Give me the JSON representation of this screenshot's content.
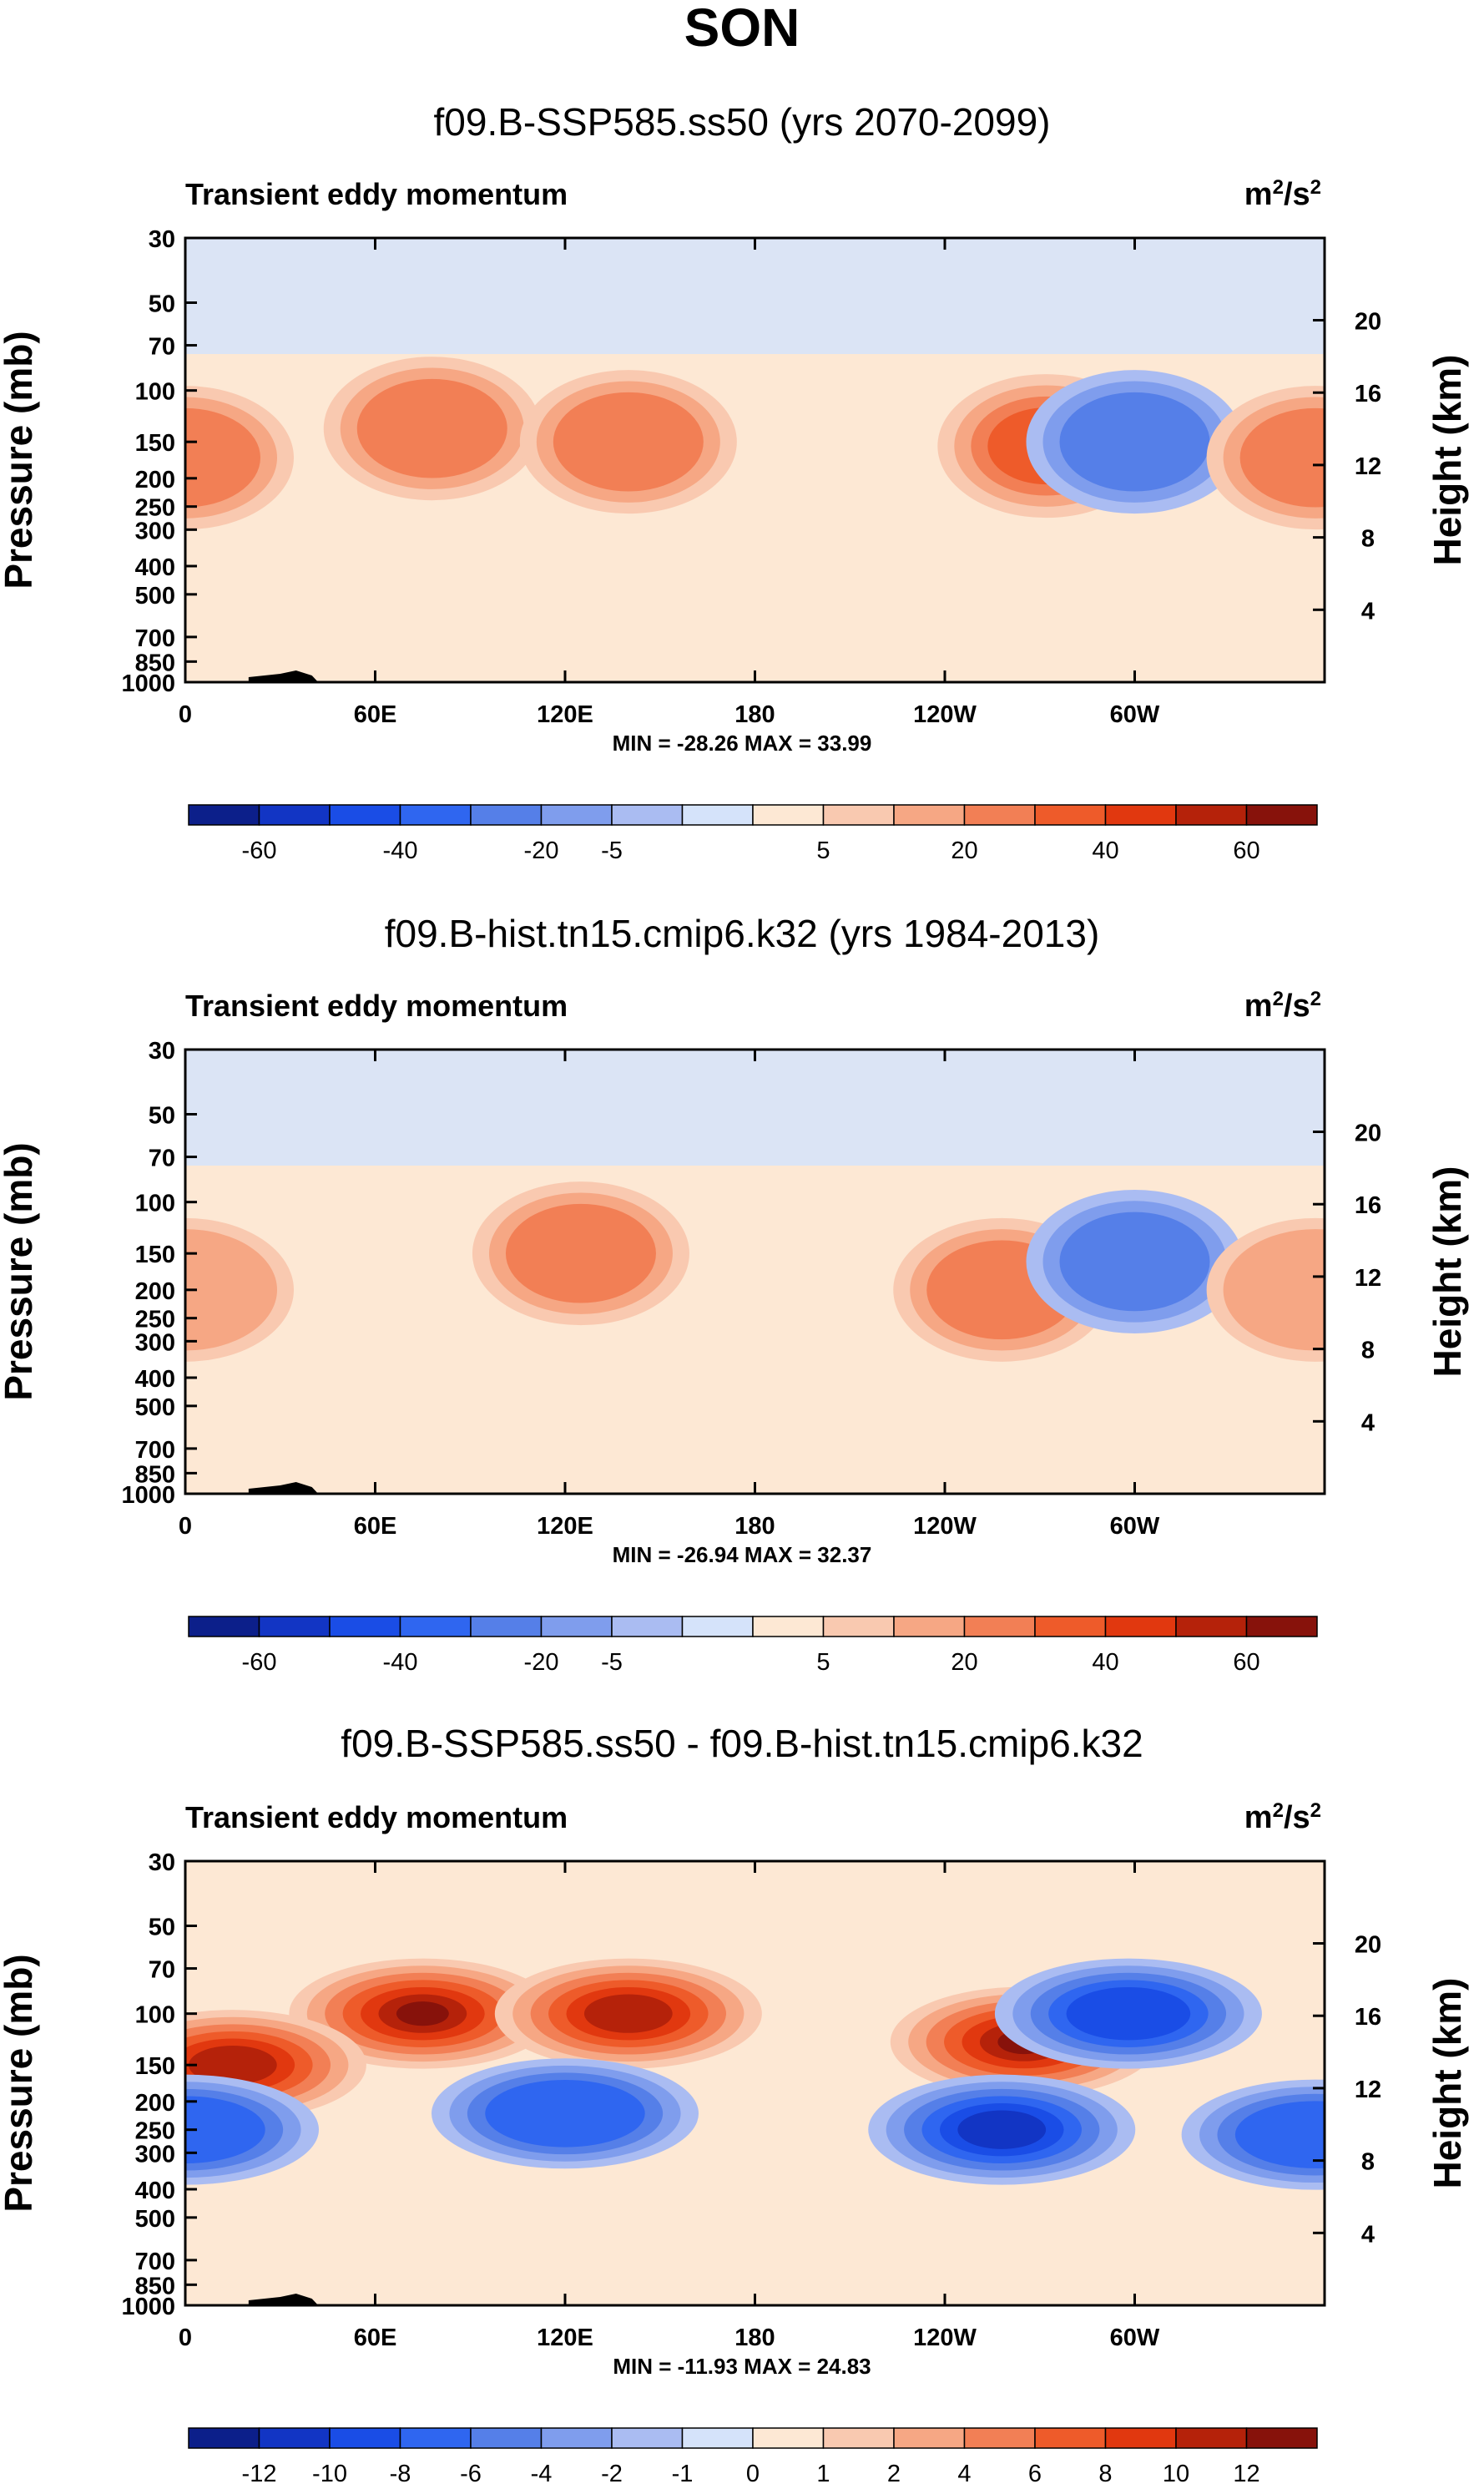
{
  "figure_title": "SON",
  "chart_data": [
    {
      "type": "heatmap",
      "title": "f09.B-SSP585.ss50 (yrs 2070-2099)",
      "variable": "Transient eddy momentum",
      "units_base": "m",
      "units_exp1": "2",
      "units_sep": "/s",
      "units_exp2": "2",
      "ylabel": "Pressure (mb)",
      "ylabel_right": "Height (km)",
      "y_ticks": [
        "30",
        "50",
        "70",
        "100",
        "150",
        "200",
        "250",
        "300",
        "400",
        "500",
        "700",
        "850",
        "1000"
      ],
      "y_right_ticks": [
        "20",
        "16",
        "12",
        "8",
        "4"
      ],
      "x_ticks": [
        "0",
        "60E",
        "120E",
        "180",
        "120W",
        "60W"
      ],
      "stats": "MIN = -28.26  MAX = 33.99",
      "colorbar_labels": [
        "-60",
        "-40",
        "-20",
        "-5",
        "5",
        "20",
        "40",
        "60"
      ],
      "features": [
        {
          "lon": 0,
          "p": 170,
          "value": 20
        },
        {
          "lon": 78,
          "p": 135,
          "value": 25
        },
        {
          "lon": 140,
          "p": 150,
          "value": 24
        },
        {
          "lon": 272,
          "p": 155,
          "value": 30
        },
        {
          "lon": 300,
          "p": 150,
          "value": -26
        },
        {
          "lon": 357,
          "p": 170,
          "value": 20
        }
      ]
    },
    {
      "type": "heatmap",
      "title": "f09.B-hist.tn15.cmip6.k32 (yrs 1984-2013)",
      "variable": "Transient eddy momentum",
      "units_base": "m",
      "units_exp1": "2",
      "units_sep": "/s",
      "units_exp2": "2",
      "ylabel": "Pressure (mb)",
      "ylabel_right": "Height (km)",
      "y_ticks": [
        "30",
        "50",
        "70",
        "100",
        "150",
        "200",
        "250",
        "300",
        "400",
        "500",
        "700",
        "850",
        "1000"
      ],
      "y_right_ticks": [
        "20",
        "16",
        "12",
        "8",
        "4"
      ],
      "x_ticks": [
        "0",
        "60E",
        "120E",
        "180",
        "120W",
        "60W"
      ],
      "stats": "MIN = -26.94  MAX = 32.37",
      "colorbar_labels": [
        "-60",
        "-40",
        "-20",
        "-5",
        "5",
        "20",
        "40",
        "60"
      ],
      "features": [
        {
          "lon": 0,
          "p": 200,
          "value": 18
        },
        {
          "lon": 125,
          "p": 150,
          "value": 22
        },
        {
          "lon": 258,
          "p": 200,
          "value": 26
        },
        {
          "lon": 300,
          "p": 160,
          "value": -24
        },
        {
          "lon": 357,
          "p": 200,
          "value": 18
        }
      ]
    },
    {
      "type": "heatmap",
      "title": "f09.B-SSP585.ss50 - f09.B-hist.tn15.cmip6.k32",
      "variable": "Transient eddy momentum",
      "units_base": "m",
      "units_exp1": "2",
      "units_sep": "/s",
      "units_exp2": "2",
      "ylabel": "Pressure (mb)",
      "ylabel_right": "Height (km)",
      "y_ticks": [
        "30",
        "50",
        "70",
        "100",
        "150",
        "200",
        "250",
        "300",
        "400",
        "500",
        "700",
        "850",
        "1000"
      ],
      "y_right_ticks": [
        "20",
        "16",
        "12",
        "8",
        "4"
      ],
      "x_ticks": [
        "0",
        "60E",
        "120E",
        "180",
        "120W",
        "60W"
      ],
      "stats": "MIN = -11.93  MAX = 24.83",
      "colorbar_labels": [
        "-12",
        "-10",
        "-8",
        "-6",
        "-4",
        "-2",
        "-1",
        "0",
        "1",
        "2",
        "4",
        "6",
        "8",
        "10",
        "12"
      ],
      "features": [
        {
          "lon": 75,
          "p": 100,
          "value": 12
        },
        {
          "lon": 140,
          "p": 100,
          "value": 10
        },
        {
          "lon": 265,
          "p": 125,
          "value": 12
        },
        {
          "lon": 15,
          "p": 150,
          "value": 10
        },
        {
          "lon": 258,
          "p": 250,
          "value": -10
        },
        {
          "lon": 120,
          "p": 220,
          "value": -6
        },
        {
          "lon": 0,
          "p": 250,
          "value": -7
        },
        {
          "lon": 357,
          "p": 260,
          "value": -7
        },
        {
          "lon": 298,
          "p": 100,
          "value": -9
        }
      ]
    }
  ]
}
